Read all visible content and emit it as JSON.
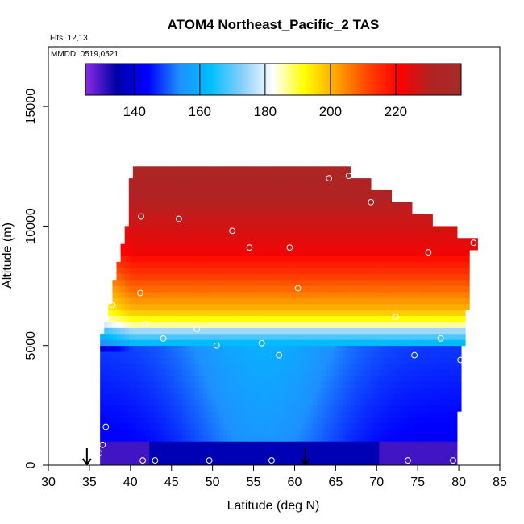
{
  "chart_data": {
    "type": "heatmap",
    "title": "ATOM4 Northeast_Pacific_2 TAS",
    "notes": [
      "Flts: 12,13",
      "MMDD: 0519,0521"
    ],
    "xlabel": "Latitude (deg N)",
    "ylabel": "Altitude (m)",
    "xlim": [
      30,
      85
    ],
    "ylim": [
      0,
      17500
    ],
    "x_ticks": [
      30,
      35,
      40,
      45,
      50,
      55,
      60,
      65,
      70,
      75,
      80,
      85
    ],
    "y_ticks": [
      0,
      5000,
      10000,
      15000
    ],
    "x_tick_labels": [
      "30",
      "35",
      "40",
      "45",
      "50",
      "55",
      "60",
      "65",
      "70",
      "75",
      "80",
      "85"
    ],
    "y_tick_labels": [
      "0",
      "5000",
      "10000",
      "15000"
    ],
    "colorbar": {
      "range": [
        125,
        240
      ],
      "ticks": [
        140,
        160,
        180,
        200,
        220
      ],
      "tick_labels": [
        "140",
        "160",
        "180",
        "200",
        "220"
      ],
      "colors": [
        "#8a2be2",
        "#0000a8",
        "#0000ff",
        "#1e90ff",
        "#00bfff",
        "#87cefa",
        "#ffffff",
        "#ffff00",
        "#ffa500",
        "#ff4500",
        "#ff0000",
        "#b22222",
        "#a52a2a"
      ]
    },
    "grid": false,
    "profile_markers": [
      {
        "lat": 34.7,
        "alt": 0
      },
      {
        "lat": 61.3,
        "alt": 0
      }
    ],
    "observations": [
      {
        "lat": 35.4,
        "alt": 4100
      },
      {
        "lat": 36.2,
        "alt": 500
      },
      {
        "lat": 36.6,
        "alt": 850
      },
      {
        "lat": 37.0,
        "alt": 1600
      },
      {
        "lat": 37.8,
        "alt": 6700
      },
      {
        "lat": 39.7,
        "alt": 12200
      },
      {
        "lat": 41.3,
        "alt": 10400
      },
      {
        "lat": 41.2,
        "alt": 7200
      },
      {
        "lat": 41.8,
        "alt": 5900
      },
      {
        "lat": 41.5,
        "alt": 200
      },
      {
        "lat": 43.0,
        "alt": 200
      },
      {
        "lat": 44.0,
        "alt": 5300
      },
      {
        "lat": 45.9,
        "alt": 10300
      },
      {
        "lat": 48.1,
        "alt": 5700
      },
      {
        "lat": 49.6,
        "alt": 200
      },
      {
        "lat": 50.5,
        "alt": 5000
      },
      {
        "lat": 52.4,
        "alt": 9800
      },
      {
        "lat": 54.5,
        "alt": 9100
      },
      {
        "lat": 56.0,
        "alt": 5100
      },
      {
        "lat": 57.2,
        "alt": 200
      },
      {
        "lat": 58.1,
        "alt": 4600
      },
      {
        "lat": 59.4,
        "alt": 9100
      },
      {
        "lat": 60.4,
        "alt": 7400
      },
      {
        "lat": 64.2,
        "alt": 12000
      },
      {
        "lat": 66.6,
        "alt": 12100
      },
      {
        "lat": 69.3,
        "alt": 11000
      },
      {
        "lat": 72.3,
        "alt": 6200
      },
      {
        "lat": 73.8,
        "alt": 200
      },
      {
        "lat": 74.6,
        "alt": 4600
      },
      {
        "lat": 76.3,
        "alt": 8900
      },
      {
        "lat": 77.8,
        "alt": 5300
      },
      {
        "lat": 79.3,
        "alt": 200
      },
      {
        "lat": 80.2,
        "alt": 4400
      },
      {
        "lat": 81.8,
        "alt": 9300
      }
    ],
    "curtain": {
      "lat_columns": [
        [
          35.4,
          0,
          4400
        ],
        [
          35.9,
          0,
          5400
        ],
        [
          36.4,
          0,
          5900
        ],
        [
          36.9,
          0,
          6700
        ],
        [
          37.5,
          0,
          7600
        ],
        [
          38.0,
          0,
          8300
        ],
        [
          38.6,
          0,
          9200
        ],
        [
          39.2,
          0,
          10000
        ],
        [
          39.8,
          0,
          11800
        ],
        [
          40.3,
          0,
          12500
        ],
        [
          79.9,
          0,
          12500
        ]
      ]
    }
  }
}
